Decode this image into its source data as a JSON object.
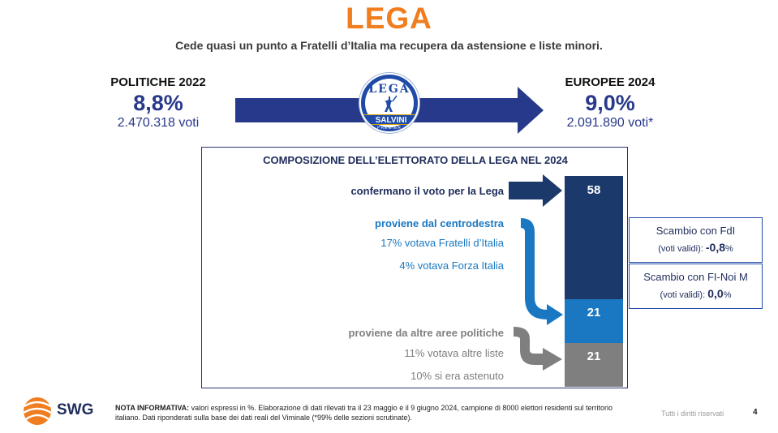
{
  "header": {
    "title": "LEGA",
    "subtitle": "Cede quasi un punto a Fratelli d’Italia ma recupera da astensione e liste minori."
  },
  "left": {
    "label": "POLITICHE 2022",
    "percent": "8,8%",
    "votes": "2.470.318 voti"
  },
  "right": {
    "label": "EUROPEE 2024",
    "percent": "9,0%",
    "votes": "2.091.890 voti*"
  },
  "logo": {
    "top": "LEGA",
    "band": "SALVINI",
    "bottom": "PREMIER"
  },
  "panel": {
    "title": "COMPOSIZIONE DELL’ELETTORATO DELLA LEGA NEL 2024",
    "rows": {
      "confirm": "confermano il voto per la Lega",
      "centrodestra": "proviene dal centrodestra",
      "fdi": "17% votava Fratelli d’Italia",
      "fi": "4% votava Forza Italia",
      "altre": "proviene da altre aree politiche",
      "liste": "11% votava altre liste",
      "astenuto": "10% si era astenuto"
    },
    "bar": [
      {
        "value": 58,
        "color": "#1b3a6b"
      },
      {
        "value": 21,
        "color": "#1a78c2"
      },
      {
        "value": 21,
        "color": "#7f7f7f"
      }
    ]
  },
  "exchange": [
    {
      "label": "Scambio con FdI",
      "prefix": "(voti validi):",
      "value": "-0,8",
      "unit": "%"
    },
    {
      "label": "Scambio con FI-Noi M",
      "prefix": "(voti validi):",
      "value": "0,0",
      "unit": "%"
    }
  ],
  "footer": {
    "brand": "SWG",
    "note_label": "NOTA INFORMATIVA:",
    "note_text": "valori espressi in %. Elaborazione di dati rilevati tra il 23 maggio e il 9 giugno 2024, campione di 8000 elettori residenti sul territorio italiano. Dati riponderati sulla base dei dati reali del Viminale (*99% delle sezioni scrutinate).",
    "rights": "Tutti i diritti riservati",
    "page": "4"
  }
}
